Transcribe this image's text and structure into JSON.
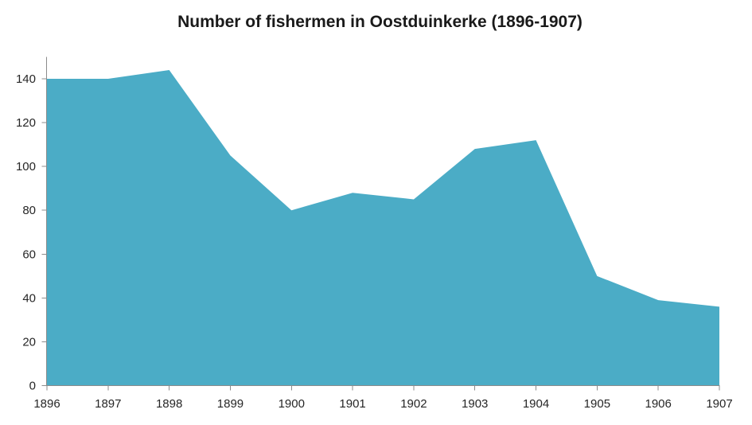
{
  "chart_data": {
    "type": "area",
    "title": "Number of fishermen in Oostduinkerke (1896-1907)",
    "categories": [
      "1896",
      "1897",
      "1898",
      "1899",
      "1900",
      "1901",
      "1902",
      "1903",
      "1904",
      "1905",
      "1906",
      "1907"
    ],
    "values": [
      140,
      140,
      144,
      105,
      80,
      88,
      85,
      108,
      112,
      50,
      39,
      36
    ],
    "xlabel": "",
    "ylabel": "",
    "ylim": [
      0,
      150
    ],
    "yticks": [
      0,
      20,
      40,
      60,
      80,
      100,
      120,
      140
    ],
    "grid": false,
    "legend": "none",
    "colors": {
      "area": "#4BACC6",
      "axis": "#8c8c8c",
      "tick": "#8c8c8c",
      "text": "#262626",
      "background": "#ffffff"
    }
  }
}
